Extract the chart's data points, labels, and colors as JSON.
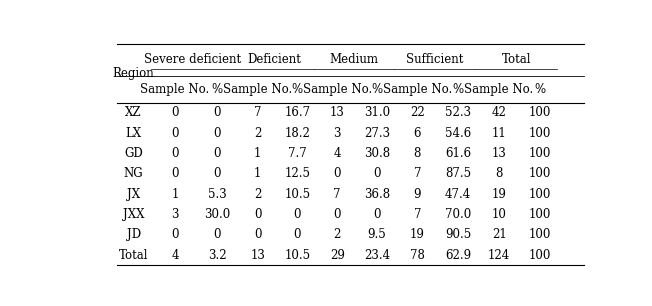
{
  "col_groups": [
    "Severe deficient",
    "Deficient",
    "Medium",
    "Sufficient",
    "Total"
  ],
  "row_labels": [
    "XZ",
    "LX",
    "GD",
    "NG",
    "JX",
    "JXX",
    "JD",
    "Total"
  ],
  "rows": [
    [
      "0",
      "0",
      "7",
      "16.7",
      "13",
      "31.0",
      "22",
      "52.3",
      "42",
      "100"
    ],
    [
      "0",
      "0",
      "2",
      "18.2",
      "3",
      "27.3",
      "6",
      "54.6",
      "11",
      "100"
    ],
    [
      "0",
      "0",
      "1",
      "7.7",
      "4",
      "30.8",
      "8",
      "61.6",
      "13",
      "100"
    ],
    [
      "0",
      "0",
      "1",
      "12.5",
      "0",
      "0",
      "7",
      "87.5",
      "8",
      "100"
    ],
    [
      "1",
      "5.3",
      "2",
      "10.5",
      "7",
      "36.8",
      "9",
      "47.4",
      "19",
      "100"
    ],
    [
      "3",
      "30.0",
      "0",
      "0",
      "0",
      "0",
      "7",
      "70.0",
      "10",
      "100"
    ],
    [
      "0",
      "0",
      "0",
      "0",
      "2",
      "9.5",
      "19",
      "90.5",
      "21",
      "100"
    ],
    [
      "4",
      "3.2",
      "13",
      "10.5",
      "29",
      "23.4",
      "78",
      "62.9",
      "124",
      "100"
    ]
  ],
  "bg_color": "#ffffff",
  "text_color": "#000000",
  "font_size": 8.5
}
